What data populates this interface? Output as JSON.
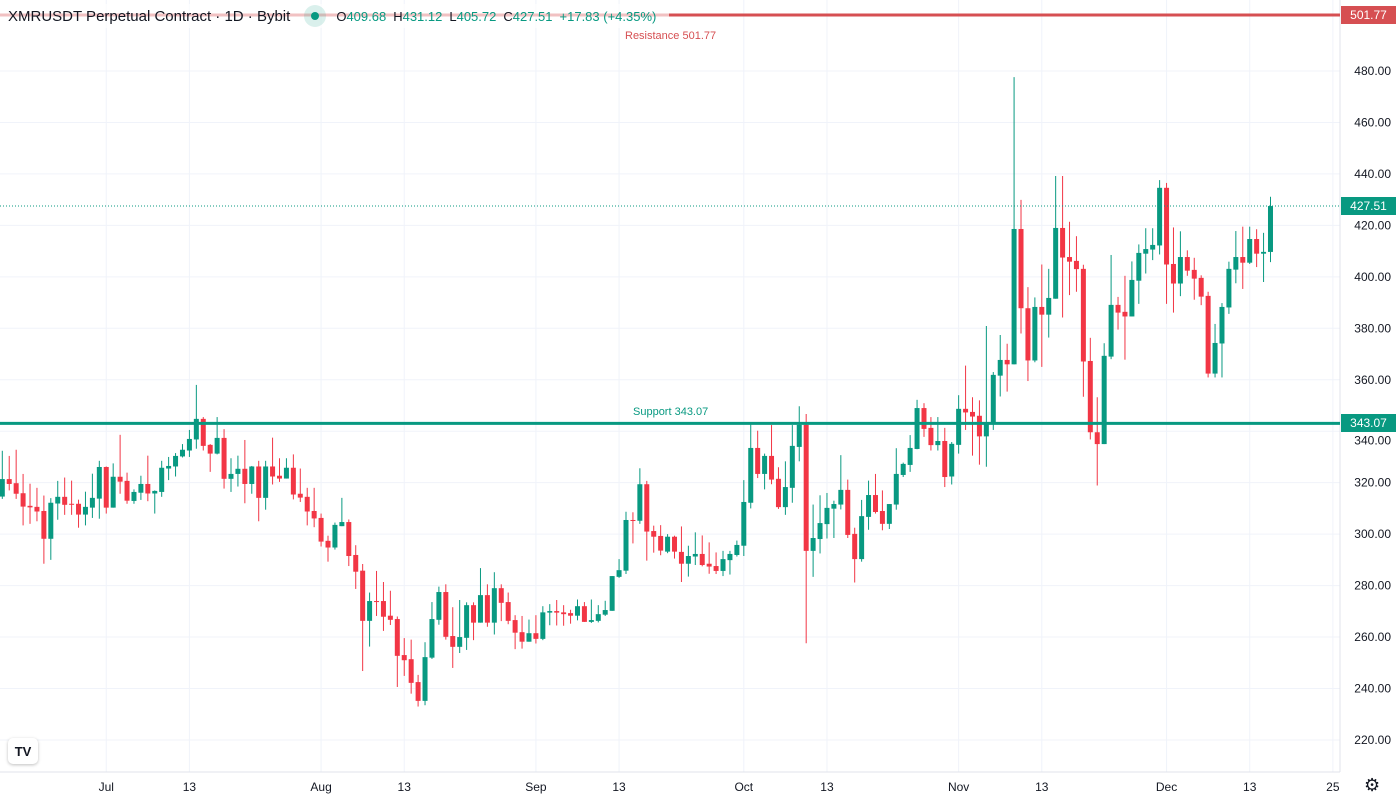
{
  "header": {
    "title": "XMRUSDT Perpetual Contract · 1D · Bybit",
    "o_label": "O",
    "o": "409.68",
    "h_label": "H",
    "h": "431.12",
    "l_label": "L",
    "l": "405.72",
    "c_label": "C",
    "c": "427.51",
    "change": "+17.83 (+4.35%)"
  },
  "colors": {
    "up": "#089981",
    "down": "#f23645",
    "resistance": "#d64f52",
    "support": "#089981",
    "grid": "#f0f3fa"
  },
  "logo": "TV",
  "icons": {
    "settings": "gear-icon",
    "logo": "tradingview-logo"
  },
  "chart_data": {
    "type": "candlestick",
    "title": "XMRUSDT Perpetual Contract · 1D · Bybit",
    "ylim": [
      210,
      500
    ],
    "y_ticks": [
      "480.00",
      "460.00",
      "440.00",
      "420.00",
      "400.00",
      "380.00",
      "360.00",
      "340.00",
      "320.00",
      "300.00",
      "280.00",
      "260.00",
      "240.00",
      "220.00"
    ],
    "y_tick_values": [
      480,
      460,
      440,
      420,
      400,
      380,
      360,
      340,
      320,
      300,
      280,
      260,
      240,
      220
    ],
    "x_ticks": [
      {
        "label": "Jul",
        "index": 15
      },
      {
        "label": "13",
        "index": 27
      },
      {
        "label": "Aug",
        "index": 46
      },
      {
        "label": "13",
        "index": 58
      },
      {
        "label": "Sep",
        "index": 77
      },
      {
        "label": "13",
        "index": 89
      },
      {
        "label": "Oct",
        "index": 107
      },
      {
        "label": "13",
        "index": 119
      },
      {
        "label": "Nov",
        "index": 138
      },
      {
        "label": "13",
        "index": 150
      },
      {
        "label": "Dec",
        "index": 168
      },
      {
        "label": "13",
        "index": 180
      },
      {
        "label": "25",
        "index": 192
      }
    ],
    "levels": {
      "resistance": {
        "label": "Resistance 501.77",
        "value": 501.77,
        "axis_label": "501.77"
      },
      "support": {
        "label": "Support 343.07",
        "value": 343.07,
        "axis_label": "343.07"
      },
      "last_price": {
        "value": 427.51,
        "axis_label": "427.51"
      }
    },
    "ohlc": [
      [
        314.6,
        332.4,
        313.7,
        321.4
      ],
      [
        321.4,
        330.4,
        317.0,
        319.5
      ],
      [
        319.8,
        332.8,
        313.7,
        315.7
      ],
      [
        315.9,
        323.4,
        303.4,
        310.7
      ],
      [
        311.0,
        319.6,
        304.0,
        310.4
      ],
      [
        310.6,
        318.0,
        305.0,
        308.8
      ],
      [
        309.0,
        315.0,
        288.5,
        298.2
      ],
      [
        298.2,
        314.0,
        290.0,
        312.2
      ],
      [
        311.9,
        320.7,
        305.6,
        314.5
      ],
      [
        314.5,
        322.0,
        307.5,
        311.4
      ],
      [
        311.8,
        320.8,
        307.5,
        311.5
      ],
      [
        311.8,
        313.4,
        302.5,
        307.6
      ],
      [
        307.6,
        316.5,
        303.4,
        310.6
      ],
      [
        310.3,
        323.5,
        306.3,
        314.1
      ],
      [
        313.8,
        328.5,
        306.0,
        326.1
      ],
      [
        326.1,
        326.3,
        308.0,
        310.3
      ],
      [
        310.3,
        327.5,
        310.3,
        322.3
      ],
      [
        322.3,
        338.6,
        315.7,
        320.4
      ],
      [
        320.7,
        323.9,
        311.8,
        313.0
      ],
      [
        312.9,
        317.4,
        311.8,
        316.4
      ],
      [
        316.1,
        322.7,
        313.3,
        319.5
      ],
      [
        319.5,
        330.5,
        312.8,
        315.8
      ],
      [
        315.8,
        317.0,
        308.0,
        316.8
      ],
      [
        316.4,
        328.5,
        314.5,
        325.8
      ],
      [
        325.5,
        330.0,
        321.0,
        326.5
      ],
      [
        326.3,
        331.5,
        322.4,
        330.4
      ],
      [
        330.2,
        335.0,
        329.8,
        332.8
      ],
      [
        332.5,
        340.5,
        330.0,
        337.0
      ],
      [
        336.8,
        358.0,
        333.2,
        344.8
      ],
      [
        344.8,
        345.5,
        332.5,
        334.3
      ],
      [
        334.7,
        335.0,
        324.2,
        331.3
      ],
      [
        331.3,
        345.5,
        331.0,
        337.4
      ],
      [
        337.4,
        340.8,
        317.7,
        321.5
      ],
      [
        321.5,
        329.5,
        316.4,
        323.4
      ],
      [
        323.4,
        330.5,
        318.5,
        325.4
      ],
      [
        325.4,
        336.6,
        312.0,
        319.5
      ],
      [
        319.5,
        326.5,
        315.7,
        326.3
      ],
      [
        326.3,
        328.5,
        305.0,
        314.1
      ],
      [
        314.1,
        328.5,
        309.5,
        326.3
      ],
      [
        326.3,
        337.5,
        319.3,
        322.4
      ],
      [
        322.7,
        329.5,
        320.3,
        321.6
      ],
      [
        321.6,
        329.5,
        321.6,
        325.8
      ],
      [
        325.8,
        331.0,
        313.5,
        315.4
      ],
      [
        315.7,
        325.5,
        312.5,
        314.2
      ],
      [
        314.5,
        318.0,
        303.4,
        308.8
      ],
      [
        309.0,
        318.0,
        302.7,
        306.1
      ],
      [
        306.3,
        308.0,
        295.2,
        297.1
      ],
      [
        297.4,
        299.4,
        289.3,
        294.8
      ],
      [
        294.8,
        304.5,
        294.0,
        303.6
      ],
      [
        303.1,
        314.1,
        303.1,
        304.7
      ],
      [
        304.7,
        305.7,
        287.6,
        291.5
      ],
      [
        291.9,
        295.7,
        278.7,
        285.4
      ],
      [
        285.8,
        288.4,
        246.8,
        266.3
      ],
      [
        266.3,
        277.3,
        256.3,
        274.0
      ],
      [
        274.0,
        285.7,
        268.2,
        273.6
      ],
      [
        274.0,
        281.4,
        262.4,
        267.9
      ],
      [
        268.3,
        278.0,
        264.7,
        266.7
      ],
      [
        267.0,
        268.0,
        240.6,
        252.7
      ],
      [
        253.0,
        259.6,
        244.9,
        251.0
      ],
      [
        251.4,
        259.0,
        238.0,
        242.2
      ],
      [
        242.5,
        245.3,
        233.0,
        235.2
      ],
      [
        235.2,
        258.0,
        233.5,
        252.2
      ],
      [
        252.0,
        273.6,
        251.5,
        267.0
      ],
      [
        266.7,
        279.6,
        264.8,
        277.5
      ],
      [
        277.5,
        280.5,
        259.0,
        260.1
      ],
      [
        260.4,
        271.6,
        248.0,
        256.2
      ],
      [
        256.2,
        274.4,
        253.8,
        260.0
      ],
      [
        259.7,
        273.5,
        255.0,
        272.4
      ],
      [
        272.4,
        273.5,
        258.8,
        265.6
      ],
      [
        265.6,
        286.8,
        265.6,
        276.3
      ],
      [
        276.3,
        280.5,
        264.0,
        265.6
      ],
      [
        265.6,
        285.2,
        261.0,
        279.0
      ],
      [
        279.0,
        280.5,
        266.2,
        273.3
      ],
      [
        273.6,
        277.3,
        265.0,
        266.3
      ],
      [
        266.6,
        268.5,
        255.3,
        261.7
      ],
      [
        261.9,
        268.2,
        255.5,
        258.2
      ],
      [
        258.2,
        266.8,
        258.2,
        261.5
      ],
      [
        261.5,
        268.5,
        257.5,
        259.3
      ],
      [
        259.3,
        272.0,
        258.8,
        269.6
      ],
      [
        269.5,
        272.8,
        264.6,
        270.1
      ],
      [
        270.1,
        274.4,
        264.5,
        269.5
      ],
      [
        269.6,
        272.4,
        264.4,
        268.9
      ],
      [
        269.3,
        270.6,
        265.2,
        268.3
      ],
      [
        268.3,
        274.6,
        266.5,
        272.0
      ],
      [
        272.0,
        273.6,
        265.9,
        265.9
      ],
      [
        265.9,
        274.6,
        265.5,
        266.6
      ],
      [
        266.3,
        272.4,
        265.7,
        268.9
      ],
      [
        268.7,
        274.1,
        268.2,
        270.5
      ],
      [
        270.2,
        283.7,
        270.2,
        283.7
      ],
      [
        283.4,
        290.3,
        283.0,
        286.0
      ],
      [
        285.8,
        308.7,
        284.5,
        305.5
      ],
      [
        305.5,
        308.5,
        296.4,
        305.2
      ],
      [
        305.2,
        325.6,
        304.0,
        319.4
      ],
      [
        319.4,
        320.7,
        289.7,
        301.0
      ],
      [
        301.2,
        303.3,
        292.8,
        299.0
      ],
      [
        299.3,
        303.5,
        291.8,
        293.6
      ],
      [
        293.2,
        300.0,
        292.6,
        299.0
      ],
      [
        299.0,
        299.4,
        290.5,
        293.2
      ],
      [
        293.1,
        303.0,
        281.4,
        288.5
      ],
      [
        288.5,
        295.5,
        283.5,
        291.5
      ],
      [
        291.3,
        300.7,
        288.0,
        292.3
      ],
      [
        292.3,
        299.5,
        287.5,
        288.0
      ],
      [
        288.5,
        296.8,
        284.6,
        287.4
      ],
      [
        287.6,
        292.9,
        284.5,
        285.7
      ],
      [
        285.7,
        293.5,
        283.7,
        290.3
      ],
      [
        289.9,
        293.5,
        284.3,
        292.3
      ],
      [
        291.9,
        297.5,
        291.3,
        295.8
      ],
      [
        295.5,
        321.0,
        291.5,
        312.5
      ],
      [
        312.2,
        343.3,
        310.0,
        333.5
      ],
      [
        333.5,
        340.2,
        321.8,
        323.4
      ],
      [
        323.4,
        331.3,
        317.4,
        330.4
      ],
      [
        330.4,
        342.4,
        319.4,
        321.2
      ],
      [
        321.5,
        326.0,
        309.8,
        310.5
      ],
      [
        310.5,
        328.3,
        307.5,
        318.3
      ],
      [
        318.0,
        342.4,
        312.2,
        334.3
      ],
      [
        333.9,
        349.7,
        328.3,
        342.5
      ],
      [
        342.5,
        346.7,
        257.6,
        293.5
      ],
      [
        293.5,
        311.5,
        283.4,
        298.5
      ],
      [
        298.1,
        315.1,
        292.5,
        304.3
      ],
      [
        303.9,
        316.0,
        298.3,
        310.2
      ],
      [
        309.9,
        313.0,
        298.5,
        311.7
      ],
      [
        311.5,
        330.7,
        309.6,
        317.2
      ],
      [
        317.2,
        321.2,
        298.5,
        299.7
      ],
      [
        300.1,
        302.5,
        281.2,
        290.3
      ],
      [
        290.3,
        313.3,
        289.3,
        307.0
      ],
      [
        306.7,
        320.8,
        301.7,
        315.2
      ],
      [
        315.2,
        323.4,
        308.0,
        308.6
      ],
      [
        309.0,
        317.0,
        301.5,
        304.0
      ],
      [
        304.0,
        311.7,
        302.0,
        311.7
      ],
      [
        311.5,
        333.4,
        309.5,
        323.4
      ],
      [
        323.0,
        327.8,
        322.2,
        327.3
      ],
      [
        326.9,
        338.5,
        324.2,
        333.5
      ],
      [
        333.1,
        352.2,
        333.0,
        349.0
      ],
      [
        349.0,
        350.9,
        337.8,
        340.9
      ],
      [
        341.3,
        345.5,
        332.5,
        334.6
      ],
      [
        334.6,
        345.5,
        332.5,
        336.2
      ],
      [
        336.2,
        341.3,
        318.3,
        322.2
      ],
      [
        322.4,
        335.8,
        319.3,
        335.1
      ],
      [
        334.7,
        354.0,
        331.3,
        348.7
      ],
      [
        348.7,
        365.5,
        340.5,
        347.3
      ],
      [
        347.5,
        353.2,
        330.5,
        345.7
      ],
      [
        346.0,
        352.0,
        327.0,
        338.0
      ],
      [
        338.0,
        380.9,
        326.2,
        343.5
      ],
      [
        343.5,
        363.0,
        340.5,
        361.9
      ],
      [
        361.6,
        377.4,
        353.5,
        367.7
      ],
      [
        367.7,
        374.0,
        355.4,
        366.0
      ],
      [
        366.0,
        477.6,
        366.0,
        418.6
      ],
      [
        418.6,
        429.9,
        378.0,
        387.8
      ],
      [
        387.8,
        396.0,
        359.5,
        367.5
      ],
      [
        367.5,
        392.0,
        366.8,
        388.3
      ],
      [
        388.3,
        404.8,
        365.0,
        385.3
      ],
      [
        385.3,
        403.1,
        376.4,
        391.8
      ],
      [
        391.5,
        439.2,
        391.5,
        419.0
      ],
      [
        419.0,
        439.2,
        384.2,
        407.5
      ],
      [
        407.7,
        421.4,
        392.9,
        405.9
      ],
      [
        406.2,
        415.8,
        394.2,
        403.0
      ],
      [
        403.1,
        404.7,
        353.4,
        367.1
      ],
      [
        367.3,
        376.3,
        336.8,
        339.6
      ],
      [
        339.6,
        353.2,
        318.9,
        335.0
      ],
      [
        335.0,
        374.2,
        335.0,
        369.3
      ],
      [
        369.0,
        408.5,
        368.0,
        389.1
      ],
      [
        389.1,
        392.2,
        379.5,
        386.1
      ],
      [
        386.4,
        400.4,
        367.8,
        384.6
      ],
      [
        384.6,
        406.0,
        384.6,
        398.8
      ],
      [
        398.5,
        412.6,
        389.5,
        409.3
      ],
      [
        409.0,
        418.9,
        401.3,
        410.8
      ],
      [
        410.6,
        418.9,
        406.5,
        412.4
      ],
      [
        412.2,
        437.6,
        408.7,
        434.6
      ],
      [
        434.6,
        436.5,
        389.5,
        404.8
      ],
      [
        405.0,
        419.2,
        386.1,
        397.4
      ],
      [
        397.4,
        417.7,
        392.5,
        407.7
      ],
      [
        407.7,
        410.3,
        400.4,
        402.4
      ],
      [
        402.7,
        407.4,
        391.1,
        399.3
      ],
      [
        399.6,
        400.6,
        389.0,
        392.3
      ],
      [
        392.6,
        394.2,
        360.9,
        362.4
      ],
      [
        362.4,
        381.7,
        360.9,
        374.3
      ],
      [
        374.1,
        389.8,
        360.9,
        388.3
      ],
      [
        388.1,
        405.9,
        385.6,
        403.1
      ],
      [
        402.8,
        417.8,
        397.5,
        407.7
      ],
      [
        407.7,
        419.5,
        395.3,
        405.5
      ],
      [
        405.5,
        419.5,
        405.0,
        414.7
      ],
      [
        414.7,
        418.5,
        403.8,
        409.0
      ],
      [
        409.0,
        417.1,
        398.0,
        409.7
      ],
      [
        409.68,
        431.12,
        405.72,
        427.51
      ]
    ]
  }
}
